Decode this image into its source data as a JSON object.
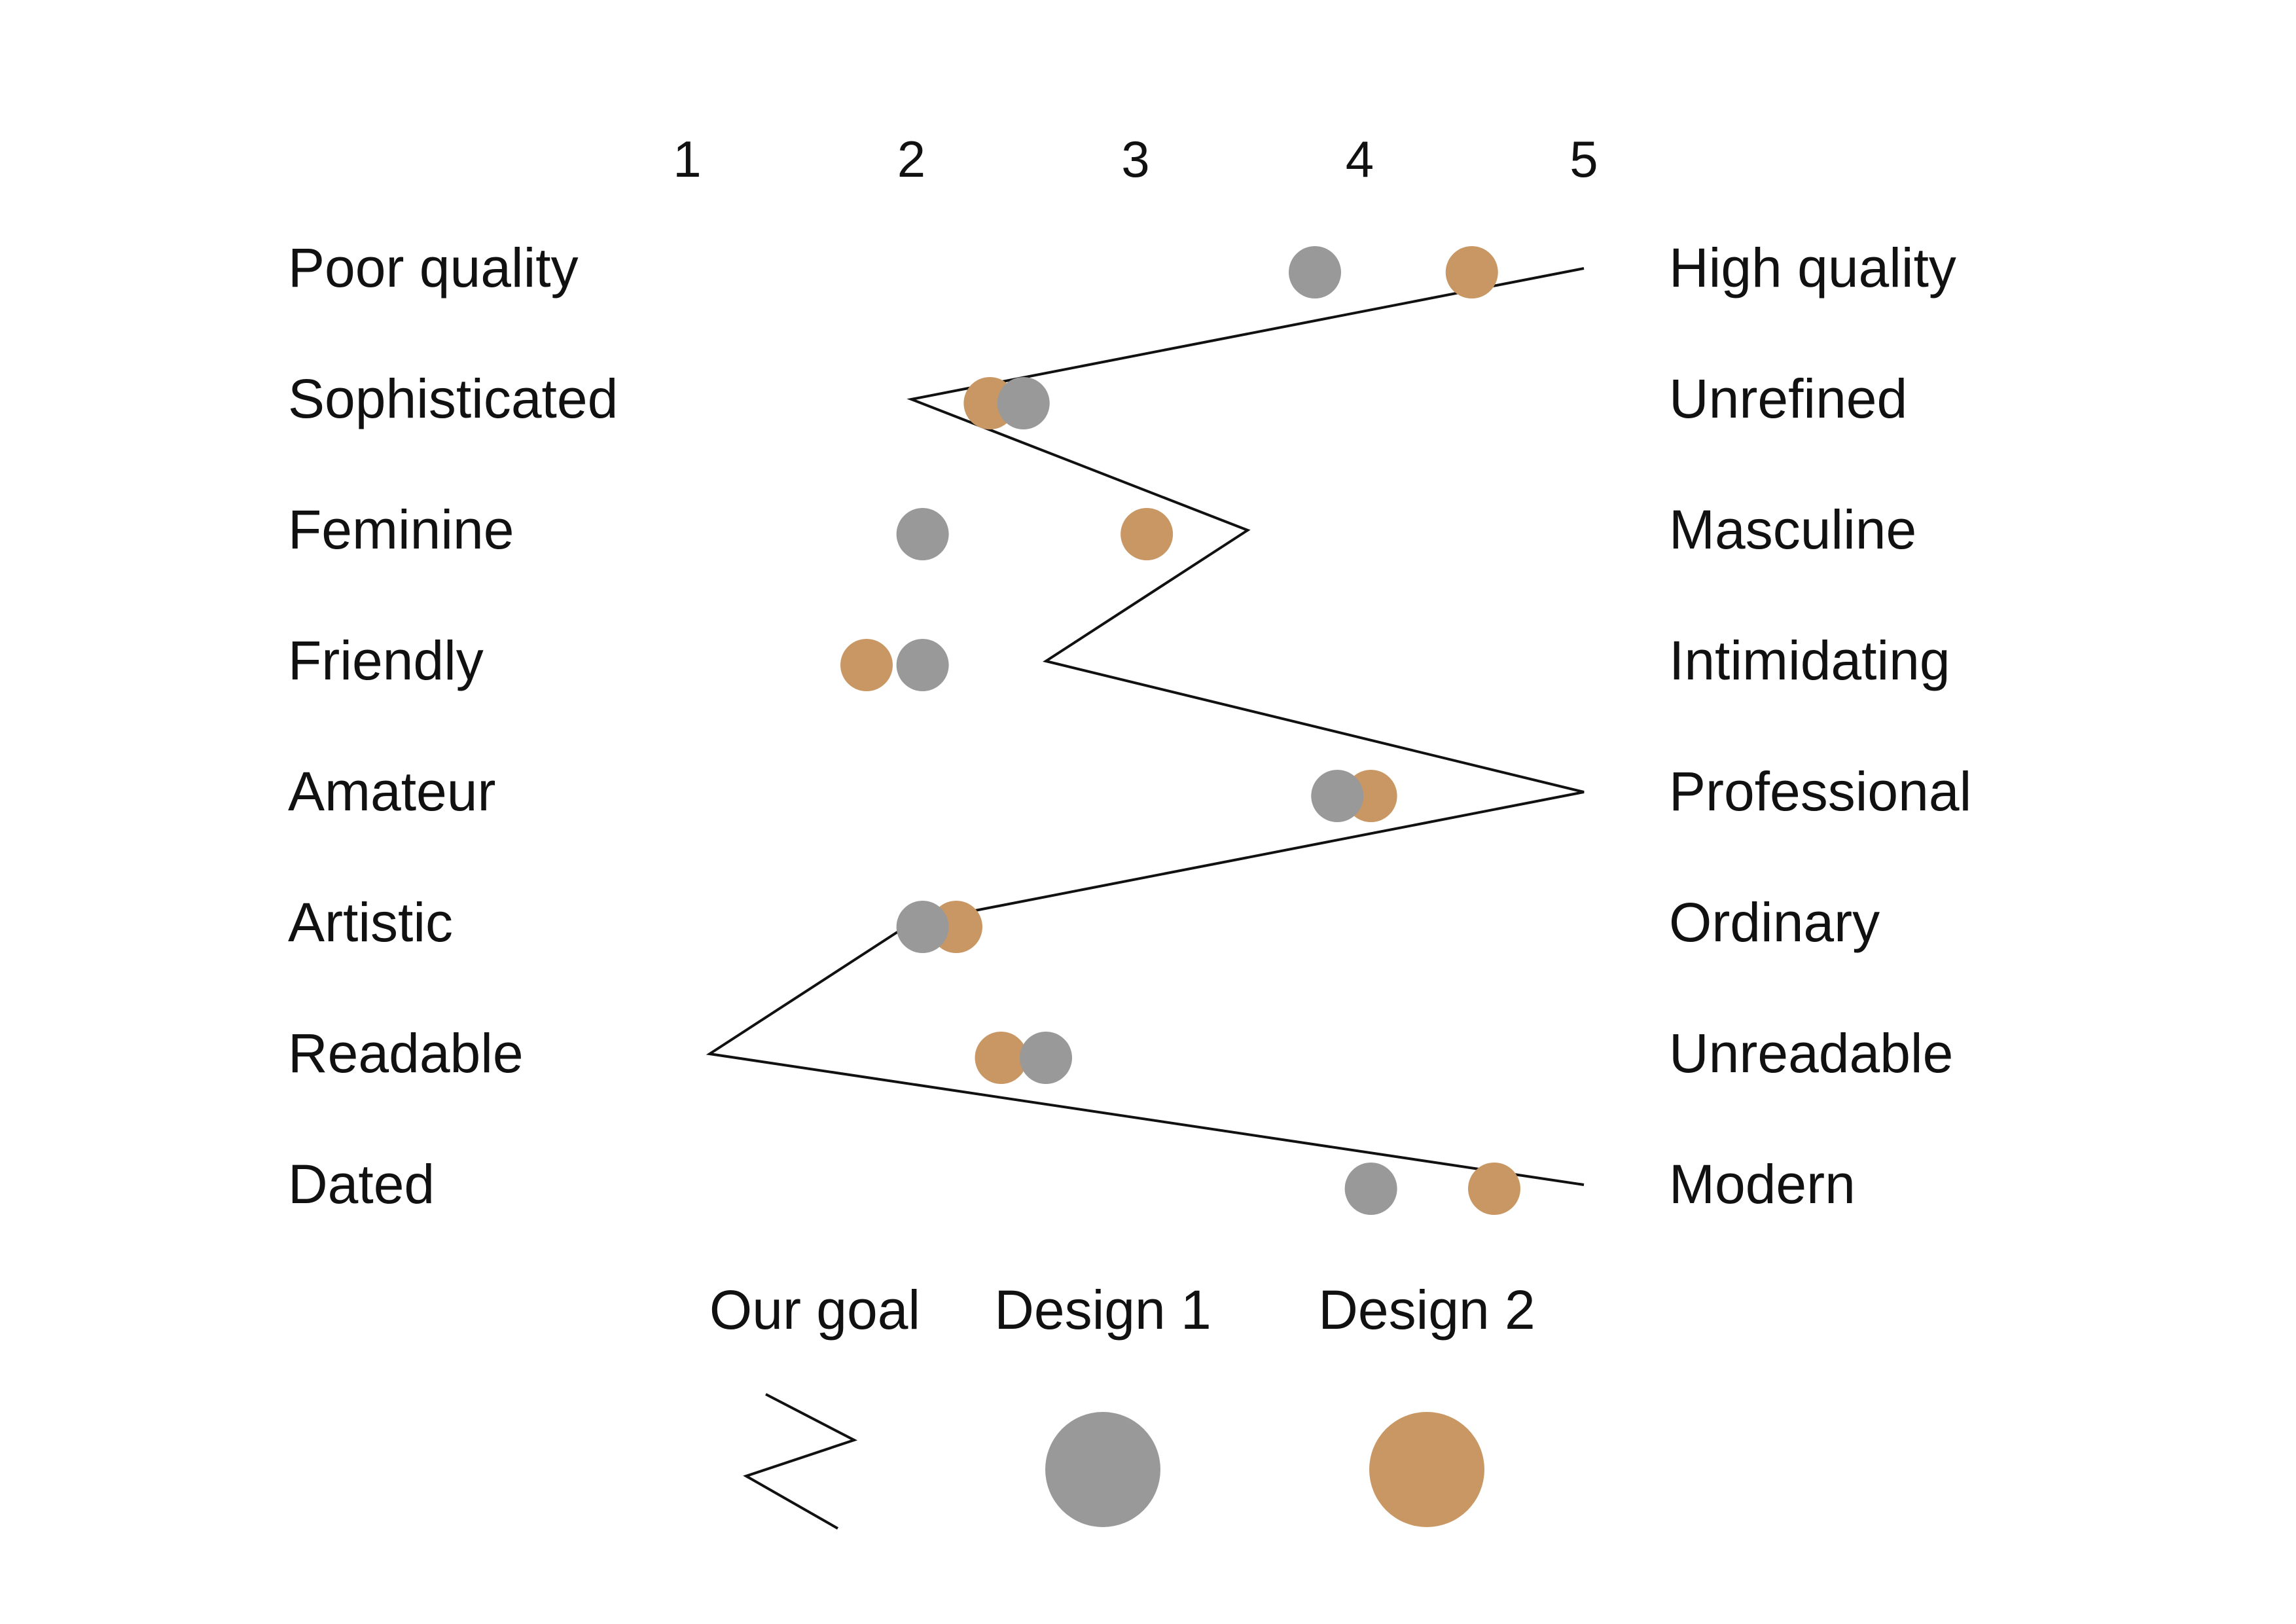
{
  "chart_data": {
    "type": "scatter",
    "subtype": "semantic-differential",
    "title": "",
    "x_axis": {
      "ticks": [
        "1",
        "2",
        "3",
        "4",
        "5"
      ],
      "range": [
        1,
        5
      ],
      "position": "top"
    },
    "grid": false,
    "rows": [
      {
        "left": "Poor quality",
        "right": "High quality",
        "goal": 5.0,
        "design1": 3.8,
        "design2": 4.5
      },
      {
        "left": "Sophisticated",
        "right": "Unrefined",
        "goal": 2.0,
        "design1": 2.5,
        "design2": 2.35
      },
      {
        "left": "Feminine",
        "right": "Masculine",
        "goal": 3.5,
        "design1": 2.05,
        "design2": 3.05
      },
      {
        "left": "Friendly",
        "right": "Intimidating",
        "goal": 2.6,
        "design1": 2.05,
        "design2": 1.8
      },
      {
        "left": "Amateur",
        "right": "Professional",
        "goal": 5.0,
        "design1": 3.9,
        "design2": 4.05
      },
      {
        "left": "Artistic",
        "right": "Ordinary",
        "goal": 2.0,
        "design1": 2.05,
        "design2": 2.2
      },
      {
        "left": "Readable",
        "right": "Unreadable",
        "goal": 1.1,
        "design1": 2.6,
        "design2": 2.4
      },
      {
        "left": "Dated",
        "right": "Modern",
        "goal": 5.0,
        "design1": 4.05,
        "design2": 4.6
      }
    ],
    "series": [
      {
        "name": "Our goal",
        "key": "goal",
        "mark": "line",
        "color": "#111111"
      },
      {
        "name": "Design 1",
        "key": "design1",
        "mark": "circle",
        "color": "#999999"
      },
      {
        "name": "Design 2",
        "key": "design2",
        "mark": "circle",
        "color": "#C99763"
      }
    ],
    "legend_position": "bottom-center"
  }
}
